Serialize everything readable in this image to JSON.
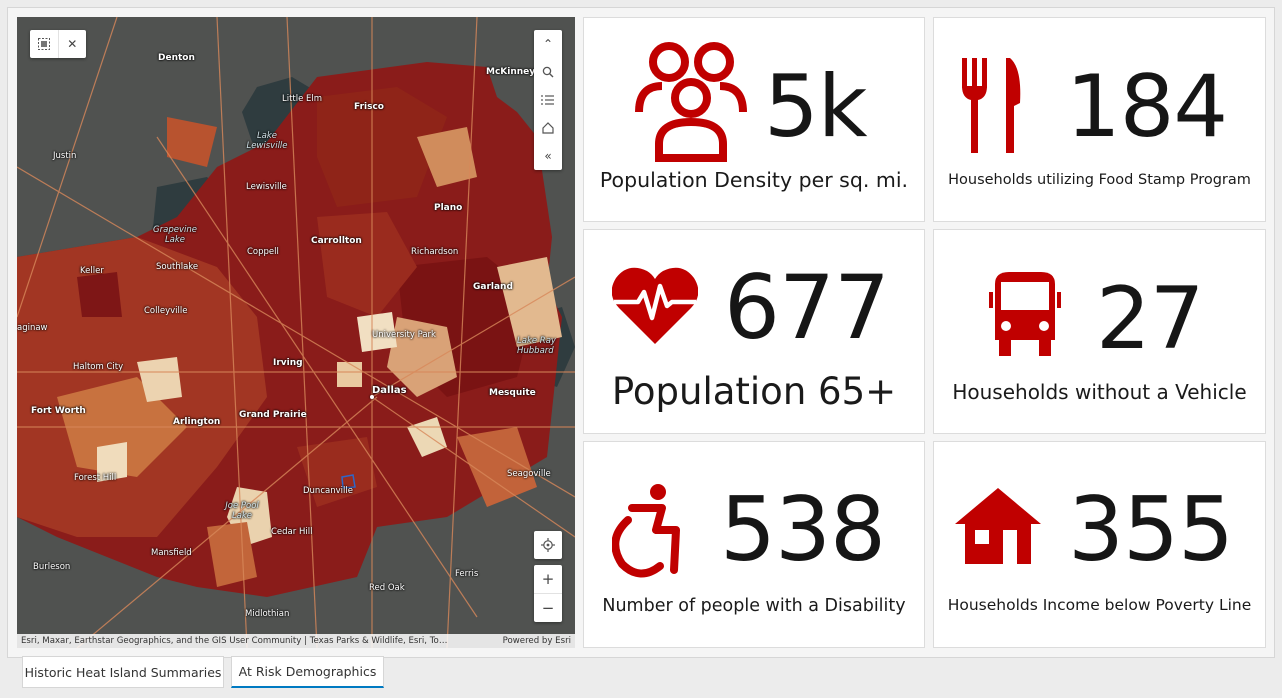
{
  "map": {
    "attribution": "Esri, Maxar, Earthstar Geographics, and the GIS User Community | Texas Parks & Wildlife, Esri, To…",
    "powered_by": "Powered by Esri",
    "labels": {
      "denton": "Denton",
      "mckinney": "McKinney",
      "little_elm": "Little Elm",
      "frisco": "Frisco",
      "lake_lewisville": "Lake Lewisville",
      "justin": "Justin",
      "lewisville": "Lewisville",
      "plano": "Plano",
      "grapevine_lake": "Grapevine Lake",
      "coppell": "Coppell",
      "carrollton": "Carrollton",
      "richardson": "Richardson",
      "keller": "Keller",
      "southlake": "Southlake",
      "garland": "Garland",
      "colleyville": "Colleyville",
      "saginaw": "aginaw",
      "university_park": "University Park",
      "lake_ray_hubbard": "Lake Ray Hubbard",
      "haltom_city": "Haltom City",
      "irving": "Irving",
      "dallas": "Dallas",
      "mesquite": "Mesquite",
      "fort_worth": "Fort Worth",
      "grand_prairie": "Grand Prairie",
      "arlington": "Arlington",
      "forest_hill": "Forest Hill",
      "duncanville": "Duncanville",
      "seagoville": "Seagoville",
      "joe_pool_lake": "Joe Pool Lake",
      "cedar_hill": "Cedar Hill",
      "mansfield": "Mansfield",
      "burleson": "Burleson",
      "ferris": "Ferris",
      "red_oak": "Red Oak",
      "midlothian": "Midlothian"
    }
  },
  "cards": [
    {
      "value": "5k",
      "caption": "Population Density per sq. mi.",
      "icon": "people-group-icon"
    },
    {
      "value": "184",
      "caption": "Households utilizing Food Stamp Program",
      "icon": "fork-knife-icon"
    },
    {
      "value": "677",
      "caption": "Population 65+",
      "icon": "heart-pulse-icon"
    },
    {
      "value": "27",
      "caption": "Households without a Vehicle",
      "icon": "bus-icon"
    },
    {
      "value": "538",
      "caption": "Number of people with a Disability",
      "icon": "wheelchair-icon"
    },
    {
      "value": "355",
      "caption": "Households Income below Poverty Line",
      "icon": "house-icon"
    }
  ],
  "tabs": [
    {
      "label": "Historic Heat Island Summaries",
      "active": false
    },
    {
      "label": "At Risk Demographics",
      "active": true
    }
  ],
  "colors": {
    "icon_red": "#c00000",
    "tab_accent": "#007ac2",
    "choropleth_dark": "#7d1414",
    "choropleth_light": "#f2dcc0"
  }
}
